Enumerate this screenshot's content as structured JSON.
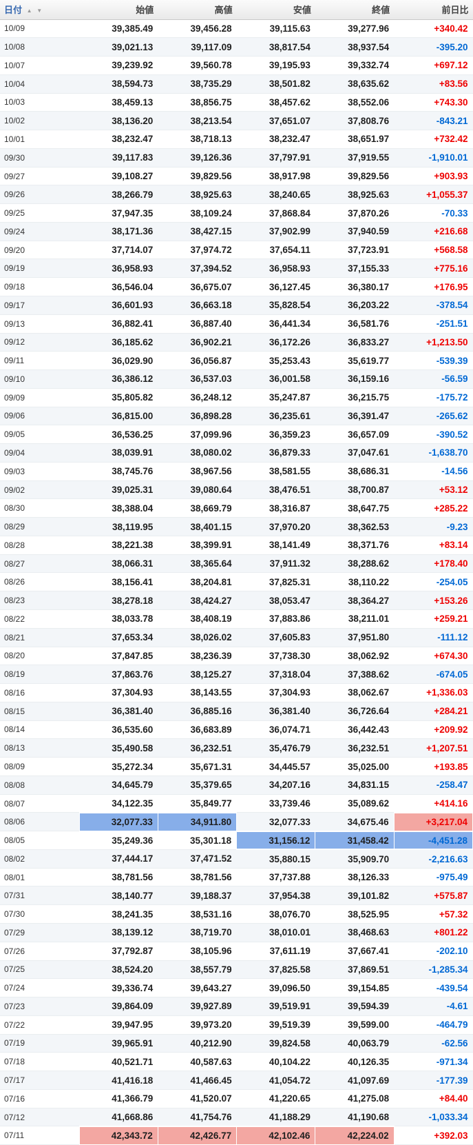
{
  "header": {
    "date_label": "日付",
    "sort_up_icon": "▲",
    "sort_down_icon": "▼",
    "columns": [
      "始値",
      "高値",
      "安値",
      "終値",
      "前日比"
    ]
  },
  "colors": {
    "positive_text": "#ee0000",
    "negative_text": "#0068d4",
    "highlight_min_blue": "#87aee9",
    "highlight_max_pink": "#f3a7a2",
    "row_stripe": "#f3f6f9",
    "date_header_link": "#3668b0"
  },
  "table": {
    "rows": [
      {
        "date": "10/09",
        "open": "39,385.49",
        "high": "39,456.28",
        "low": "39,115.63",
        "close": "39,277.96",
        "change": "+340.42"
      },
      {
        "date": "10/08",
        "open": "39,021.13",
        "high": "39,117.09",
        "low": "38,817.54",
        "close": "38,937.54",
        "change": "-395.20"
      },
      {
        "date": "10/07",
        "open": "39,239.92",
        "high": "39,560.78",
        "low": "39,195.93",
        "close": "39,332.74",
        "change": "+697.12"
      },
      {
        "date": "10/04",
        "open": "38,594.73",
        "high": "38,735.29",
        "low": "38,501.82",
        "close": "38,635.62",
        "change": "+83.56"
      },
      {
        "date": "10/03",
        "open": "38,459.13",
        "high": "38,856.75",
        "low": "38,457.62",
        "close": "38,552.06",
        "change": "+743.30"
      },
      {
        "date": "10/02",
        "open": "38,136.20",
        "high": "38,213.54",
        "low": "37,651.07",
        "close": "37,808.76",
        "change": "-843.21"
      },
      {
        "date": "10/01",
        "open": "38,232.47",
        "high": "38,718.13",
        "low": "38,232.47",
        "close": "38,651.97",
        "change": "+732.42"
      },
      {
        "date": "09/30",
        "open": "39,117.83",
        "high": "39,126.36",
        "low": "37,797.91",
        "close": "37,919.55",
        "change": "-1,910.01"
      },
      {
        "date": "09/27",
        "open": "39,108.27",
        "high": "39,829.56",
        "low": "38,917.98",
        "close": "39,829.56",
        "change": "+903.93"
      },
      {
        "date": "09/26",
        "open": "38,266.79",
        "high": "38,925.63",
        "low": "38,240.65",
        "close": "38,925.63",
        "change": "+1,055.37"
      },
      {
        "date": "09/25",
        "open": "37,947.35",
        "high": "38,109.24",
        "low": "37,868.84",
        "close": "37,870.26",
        "change": "-70.33"
      },
      {
        "date": "09/24",
        "open": "38,171.36",
        "high": "38,427.15",
        "low": "37,902.99",
        "close": "37,940.59",
        "change": "+216.68"
      },
      {
        "date": "09/20",
        "open": "37,714.07",
        "high": "37,974.72",
        "low": "37,654.11",
        "close": "37,723.91",
        "change": "+568.58"
      },
      {
        "date": "09/19",
        "open": "36,958.93",
        "high": "37,394.52",
        "low": "36,958.93",
        "close": "37,155.33",
        "change": "+775.16"
      },
      {
        "date": "09/18",
        "open": "36,546.04",
        "high": "36,675.07",
        "low": "36,127.45",
        "close": "36,380.17",
        "change": "+176.95"
      },
      {
        "date": "09/17",
        "open": "36,601.93",
        "high": "36,663.18",
        "low": "35,828.54",
        "close": "36,203.22",
        "change": "-378.54"
      },
      {
        "date": "09/13",
        "open": "36,882.41",
        "high": "36,887.40",
        "low": "36,441.34",
        "close": "36,581.76",
        "change": "-251.51"
      },
      {
        "date": "09/12",
        "open": "36,185.62",
        "high": "36,902.21",
        "low": "36,172.26",
        "close": "36,833.27",
        "change": "+1,213.50"
      },
      {
        "date": "09/11",
        "open": "36,029.90",
        "high": "36,056.87",
        "low": "35,253.43",
        "close": "35,619.77",
        "change": "-539.39"
      },
      {
        "date": "09/10",
        "open": "36,386.12",
        "high": "36,537.03",
        "low": "36,001.58",
        "close": "36,159.16",
        "change": "-56.59"
      },
      {
        "date": "09/09",
        "open": "35,805.82",
        "high": "36,248.12",
        "low": "35,247.87",
        "close": "36,215.75",
        "change": "-175.72"
      },
      {
        "date": "09/06",
        "open": "36,815.00",
        "high": "36,898.28",
        "low": "36,235.61",
        "close": "36,391.47",
        "change": "-265.62"
      },
      {
        "date": "09/05",
        "open": "36,536.25",
        "high": "37,099.96",
        "low": "36,359.23",
        "close": "36,657.09",
        "change": "-390.52"
      },
      {
        "date": "09/04",
        "open": "38,039.91",
        "high": "38,080.02",
        "low": "36,879.33",
        "close": "37,047.61",
        "change": "-1,638.70"
      },
      {
        "date": "09/03",
        "open": "38,745.76",
        "high": "38,967.56",
        "low": "38,581.55",
        "close": "38,686.31",
        "change": "-14.56"
      },
      {
        "date": "09/02",
        "open": "39,025.31",
        "high": "39,080.64",
        "low": "38,476.51",
        "close": "38,700.87",
        "change": "+53.12"
      },
      {
        "date": "08/30",
        "open": "38,388.04",
        "high": "38,669.79",
        "low": "38,316.87",
        "close": "38,647.75",
        "change": "+285.22"
      },
      {
        "date": "08/29",
        "open": "38,119.95",
        "high": "38,401.15",
        "low": "37,970.20",
        "close": "38,362.53",
        "change": "-9.23"
      },
      {
        "date": "08/28",
        "open": "38,221.38",
        "high": "38,399.91",
        "low": "38,141.49",
        "close": "38,371.76",
        "change": "+83.14"
      },
      {
        "date": "08/27",
        "open": "38,066.31",
        "high": "38,365.64",
        "low": "37,911.32",
        "close": "38,288.62",
        "change": "+178.40"
      },
      {
        "date": "08/26",
        "open": "38,156.41",
        "high": "38,204.81",
        "low": "37,825.31",
        "close": "38,110.22",
        "change": "-254.05"
      },
      {
        "date": "08/23",
        "open": "38,278.18",
        "high": "38,424.27",
        "low": "38,053.47",
        "close": "38,364.27",
        "change": "+153.26"
      },
      {
        "date": "08/22",
        "open": "38,033.78",
        "high": "38,408.19",
        "low": "37,883.86",
        "close": "38,211.01",
        "change": "+259.21"
      },
      {
        "date": "08/21",
        "open": "37,653.34",
        "high": "38,026.02",
        "low": "37,605.83",
        "close": "37,951.80",
        "change": "-111.12"
      },
      {
        "date": "08/20",
        "open": "37,847.85",
        "high": "38,236.39",
        "low": "37,738.30",
        "close": "38,062.92",
        "change": "+674.30"
      },
      {
        "date": "08/19",
        "open": "37,863.76",
        "high": "38,125.27",
        "low": "37,318.04",
        "close": "37,388.62",
        "change": "-674.05"
      },
      {
        "date": "08/16",
        "open": "37,304.93",
        "high": "38,143.55",
        "low": "37,304.93",
        "close": "38,062.67",
        "change": "+1,336.03"
      },
      {
        "date": "08/15",
        "open": "36,381.40",
        "high": "36,885.16",
        "low": "36,381.40",
        "close": "36,726.64",
        "change": "+284.21"
      },
      {
        "date": "08/14",
        "open": "36,535.60",
        "high": "36,683.89",
        "low": "36,074.71",
        "close": "36,442.43",
        "change": "+209.92"
      },
      {
        "date": "08/13",
        "open": "35,490.58",
        "high": "36,232.51",
        "low": "35,476.79",
        "close": "36,232.51",
        "change": "+1,207.51"
      },
      {
        "date": "08/09",
        "open": "35,272.34",
        "high": "35,671.31",
        "low": "34,445.57",
        "close": "35,025.00",
        "change": "+193.85"
      },
      {
        "date": "08/08",
        "open": "34,645.79",
        "high": "35,379.65",
        "low": "34,207.16",
        "close": "34,831.15",
        "change": "-258.47"
      },
      {
        "date": "08/07",
        "open": "34,122.35",
        "high": "35,849.77",
        "low": "33,739.46",
        "close": "35,089.62",
        "change": "+414.16"
      },
      {
        "date": "08/06",
        "open": "32,077.33",
        "high": "34,911.80",
        "low": "32,077.33",
        "close": "34,675.46",
        "change": "+3,217.04",
        "hl": {
          "open": "blue",
          "high": "blue",
          "change": "pink"
        }
      },
      {
        "date": "08/05",
        "open": "35,249.36",
        "high": "35,301.18",
        "low": "31,156.12",
        "close": "31,458.42",
        "change": "-4,451.28",
        "hl": {
          "low": "blue",
          "close": "blue",
          "change": "blue"
        }
      },
      {
        "date": "08/02",
        "open": "37,444.17",
        "high": "37,471.52",
        "low": "35,880.15",
        "close": "35,909.70",
        "change": "-2,216.63"
      },
      {
        "date": "08/01",
        "open": "38,781.56",
        "high": "38,781.56",
        "low": "37,737.88",
        "close": "38,126.33",
        "change": "-975.49"
      },
      {
        "date": "07/31",
        "open": "38,140.77",
        "high": "39,188.37",
        "low": "37,954.38",
        "close": "39,101.82",
        "change": "+575.87"
      },
      {
        "date": "07/30",
        "open": "38,241.35",
        "high": "38,531.16",
        "low": "38,076.70",
        "close": "38,525.95",
        "change": "+57.32"
      },
      {
        "date": "07/29",
        "open": "38,139.12",
        "high": "38,719.70",
        "low": "38,010.01",
        "close": "38,468.63",
        "change": "+801.22"
      },
      {
        "date": "07/26",
        "open": "37,792.87",
        "high": "38,105.96",
        "low": "37,611.19",
        "close": "37,667.41",
        "change": "-202.10"
      },
      {
        "date": "07/25",
        "open": "38,524.20",
        "high": "38,557.79",
        "low": "37,825.58",
        "close": "37,869.51",
        "change": "-1,285.34"
      },
      {
        "date": "07/24",
        "open": "39,336.74",
        "high": "39,643.27",
        "low": "39,096.50",
        "close": "39,154.85",
        "change": "-439.54"
      },
      {
        "date": "07/23",
        "open": "39,864.09",
        "high": "39,927.89",
        "low": "39,519.91",
        "close": "39,594.39",
        "change": "-4.61"
      },
      {
        "date": "07/22",
        "open": "39,947.95",
        "high": "39,973.20",
        "low": "39,519.39",
        "close": "39,599.00",
        "change": "-464.79"
      },
      {
        "date": "07/19",
        "open": "39,965.91",
        "high": "40,212.90",
        "low": "39,824.58",
        "close": "40,063.79",
        "change": "-62.56"
      },
      {
        "date": "07/18",
        "open": "40,521.71",
        "high": "40,587.63",
        "low": "40,104.22",
        "close": "40,126.35",
        "change": "-971.34"
      },
      {
        "date": "07/17",
        "open": "41,416.18",
        "high": "41,466.45",
        "low": "41,054.72",
        "close": "41,097.69",
        "change": "-177.39"
      },
      {
        "date": "07/16",
        "open": "41,366.79",
        "high": "41,520.07",
        "low": "41,220.65",
        "close": "41,275.08",
        "change": "+84.40"
      },
      {
        "date": "07/12",
        "open": "41,668.86",
        "high": "41,754.76",
        "low": "41,188.29",
        "close": "41,190.68",
        "change": "-1,033.34"
      },
      {
        "date": "07/11",
        "open": "42,343.72",
        "high": "42,426.77",
        "low": "42,102.46",
        "close": "42,224.02",
        "change": "+392.03",
        "hl": {
          "open": "pink",
          "high": "pink",
          "low": "pink",
          "close": "pink"
        }
      }
    ]
  }
}
